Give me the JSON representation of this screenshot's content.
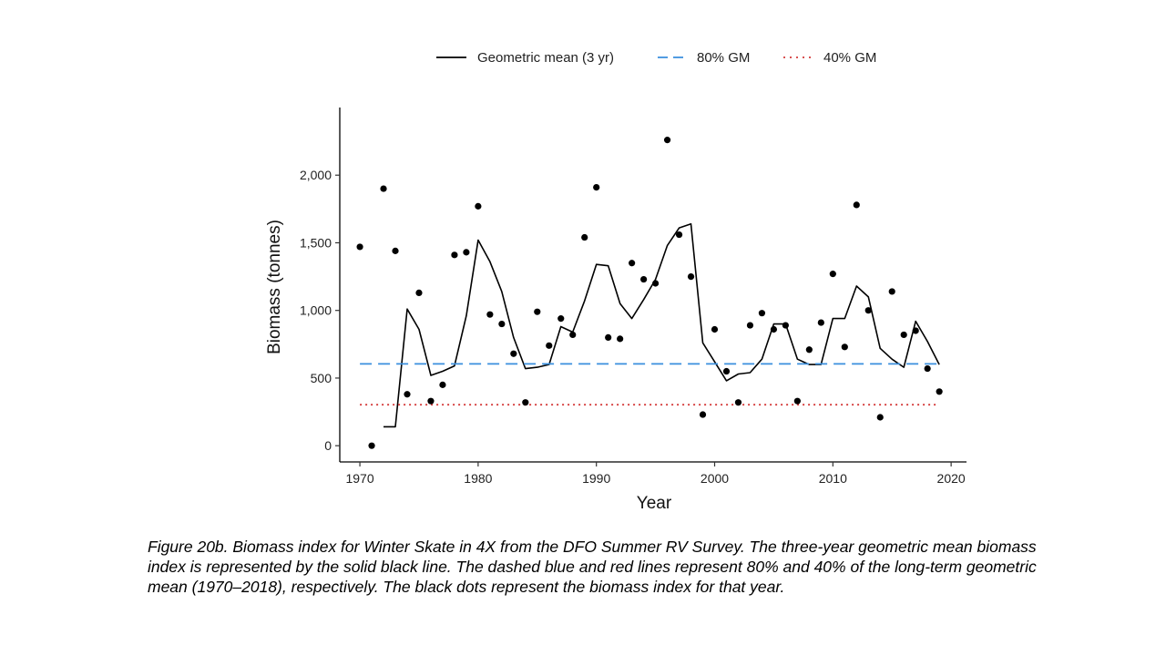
{
  "chart_data": {
    "type": "line",
    "xlabel": "Year",
    "ylabel": "Biomass (tonnes)",
    "xlim": [
      1968.3,
      2021.3
    ],
    "ylim": [
      -120,
      2500
    ],
    "xticks": [
      1970,
      1980,
      1990,
      2000,
      2010,
      2020
    ],
    "xtick_labels": [
      "1970",
      "1980",
      "1990",
      "2000",
      "2010",
      "2020"
    ],
    "yticks": [
      0,
      500,
      1000,
      1500,
      2000
    ],
    "ytick_labels": [
      "0",
      "500",
      "1,000",
      "1,500",
      "2,000"
    ],
    "grid": false,
    "legend_position": "top",
    "legend": [
      {
        "label": "Geometric mean (3 yr)",
        "style": "solid",
        "color": "#000000"
      },
      {
        "label": "80% GM",
        "style": "dashed",
        "color": "#3a8fde"
      },
      {
        "label": "40% GM",
        "style": "dotted",
        "color": "#d43a3a"
      }
    ],
    "series": [
      {
        "name": "Geometric mean (3 yr)",
        "kind": "line",
        "color": "#000000",
        "x": [
          1972,
          1973,
          1974,
          1975,
          1976,
          1977,
          1978,
          1979,
          1980,
          1981,
          1982,
          1983,
          1984,
          1985,
          1986,
          1987,
          1988,
          1989,
          1990,
          1991,
          1992,
          1993,
          1994,
          1995,
          1996,
          1997,
          1998,
          1999,
          2000,
          2001,
          2002,
          2003,
          2004,
          2005,
          2006,
          2007,
          2008,
          2009,
          2010,
          2011,
          2012,
          2013,
          2014,
          2015,
          2016,
          2017,
          2018,
          2019
        ],
        "y": [
          140,
          140,
          1010,
          860,
          520,
          550,
          590,
          960,
          1520,
          1360,
          1140,
          800,
          570,
          580,
          600,
          880,
          840,
          1070,
          1340,
          1330,
          1050,
          940,
          1080,
          1230,
          1480,
          1610,
          1640,
          760,
          620,
          480,
          530,
          540,
          640,
          900,
          900,
          640,
          600,
          600,
          940,
          940,
          1180,
          1100,
          720,
          640,
          580,
          920,
          770,
          600
        ]
      },
      {
        "name": "80% GM",
        "kind": "hline",
        "color": "#3a8fde",
        "x": [
          1970,
          2019
        ],
        "y": [
          605,
          605
        ]
      },
      {
        "name": "40% GM",
        "kind": "hline",
        "color": "#d43a3a",
        "x": [
          1970,
          2019
        ],
        "y": [
          303,
          303
        ]
      },
      {
        "name": "Annual biomass index",
        "kind": "points",
        "color": "#000000",
        "x": [
          1970,
          1971,
          1972,
          1973,
          1974,
          1975,
          1976,
          1977,
          1978,
          1979,
          1980,
          1981,
          1982,
          1983,
          1984,
          1985,
          1986,
          1987,
          1988,
          1989,
          1990,
          1991,
          1992,
          1993,
          1994,
          1995,
          1996,
          1997,
          1998,
          1999,
          2000,
          2001,
          2002,
          2003,
          2004,
          2005,
          2006,
          2007,
          2008,
          2009,
          2010,
          2011,
          2012,
          2013,
          2014,
          2015,
          2016,
          2017,
          2018,
          2019
        ],
        "y": [
          1470,
          0,
          1900,
          1440,
          380,
          1130,
          330,
          450,
          1410,
          1430,
          1770,
          970,
          900,
          680,
          320,
          990,
          740,
          940,
          820,
          1540,
          1910,
          800,
          790,
          1350,
          1230,
          1200,
          2260,
          1560,
          1250,
          230,
          860,
          550,
          320,
          890,
          980,
          860,
          890,
          330,
          710,
          910,
          1270,
          730,
          1780,
          1000,
          210,
          1140,
          820,
          850,
          570,
          400
        ]
      }
    ]
  },
  "caption": "Figure 20b. Biomass index for Winter Skate in 4X from the DFO Summer RV Survey. The three-year geometric mean biomass index is represented by the solid black line. The dashed blue and red lines represent 80% and 40% of the long-term geometric mean (1970–2018), respectively. The black dots represent the biomass index for that year."
}
